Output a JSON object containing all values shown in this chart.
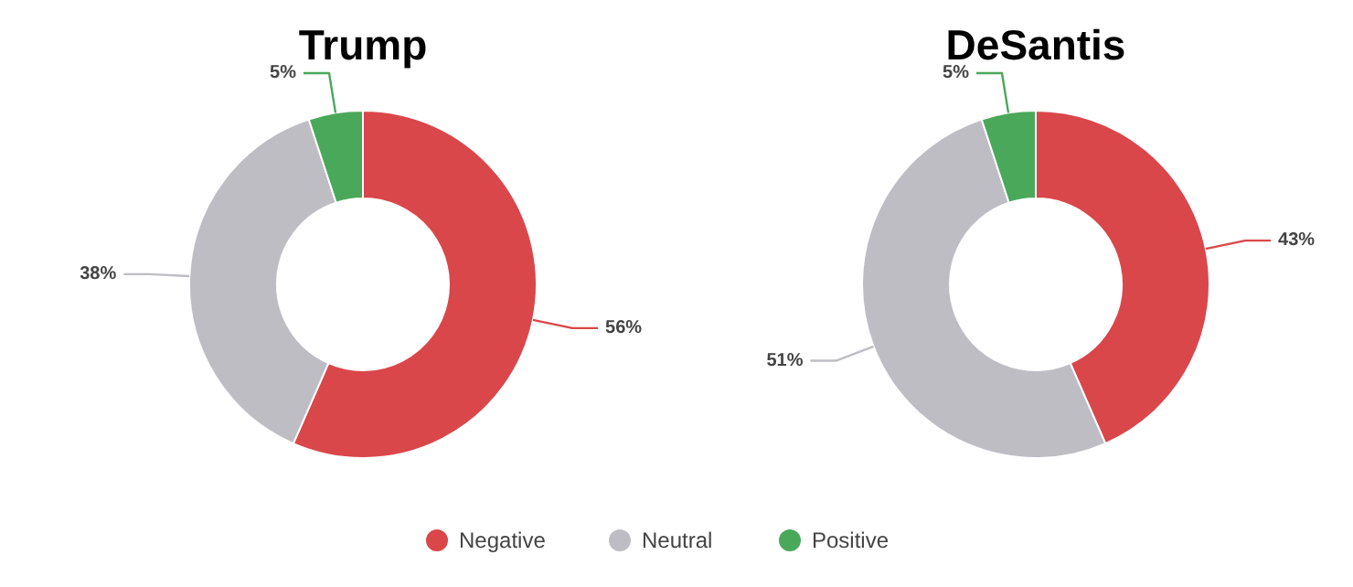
{
  "chart_data": [
    {
      "type": "donut",
      "title": "Trump",
      "categories": [
        "Negative",
        "Neutral",
        "Positive"
      ],
      "values": [
        56,
        38,
        5
      ],
      "value_labels": [
        "56%",
        "38%",
        "5%"
      ],
      "colors": [
        "#d9474b",
        "#bfbdc4",
        "#4aa85a"
      ],
      "legend": "bottom"
    },
    {
      "type": "donut",
      "title": "DeSantis",
      "categories": [
        null,
        null,
        null
      ],
      "values": [
        43,
        51,
        5
      ],
      "value_labels": [
        "43%",
        "51%",
        "5%"
      ],
      "colors": [
        "#d9474b",
        "#bfbdc4",
        "#4aa85a"
      ]
    }
  ]
}
